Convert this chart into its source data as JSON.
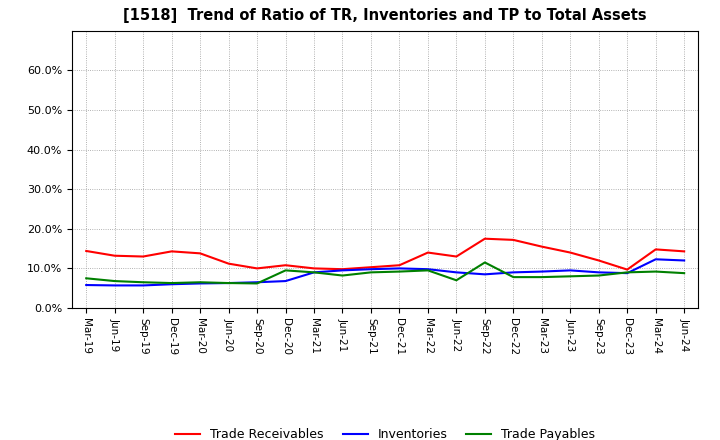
{
  "title": "[1518]  Trend of Ratio of TR, Inventories and TP to Total Assets",
  "x_labels": [
    "Mar-19",
    "Jun-19",
    "Sep-19",
    "Dec-19",
    "Mar-20",
    "Jun-20",
    "Sep-20",
    "Dec-20",
    "Mar-21",
    "Jun-21",
    "Sep-21",
    "Dec-21",
    "Mar-22",
    "Jun-22",
    "Sep-22",
    "Dec-22",
    "Mar-23",
    "Jun-23",
    "Sep-23",
    "Dec-23",
    "Mar-24",
    "Jun-24"
  ],
  "trade_receivables": [
    0.144,
    0.132,
    0.13,
    0.143,
    0.138,
    0.112,
    0.1,
    0.108,
    0.1,
    0.098,
    0.103,
    0.108,
    0.14,
    0.13,
    0.175,
    0.172,
    0.155,
    0.14,
    0.12,
    0.097,
    0.148,
    0.143
  ],
  "inventories": [
    0.058,
    0.057,
    0.057,
    0.06,
    0.062,
    0.063,
    0.065,
    0.068,
    0.09,
    0.095,
    0.098,
    0.1,
    0.098,
    0.09,
    0.085,
    0.09,
    0.092,
    0.095,
    0.09,
    0.088,
    0.123,
    0.12
  ],
  "trade_payables": [
    0.075,
    0.068,
    0.065,
    0.063,
    0.065,
    0.063,
    0.062,
    0.095,
    0.09,
    0.082,
    0.09,
    0.092,
    0.095,
    0.07,
    0.115,
    0.078,
    0.078,
    0.08,
    0.082,
    0.09,
    0.092,
    0.088
  ],
  "tr_color": "#ff0000",
  "inv_color": "#0000ff",
  "tp_color": "#008000",
  "ylim": [
    0.0,
    0.7
  ],
  "yticks": [
    0.0,
    0.1,
    0.2,
    0.3,
    0.4,
    0.5,
    0.6
  ],
  "bg_color": "#ffffff",
  "plot_bg_color": "#ffffff",
  "grid_color": "#999999",
  "legend_tr": "Trade Receivables",
  "legend_inv": "Inventories",
  "legend_tp": "Trade Payables"
}
